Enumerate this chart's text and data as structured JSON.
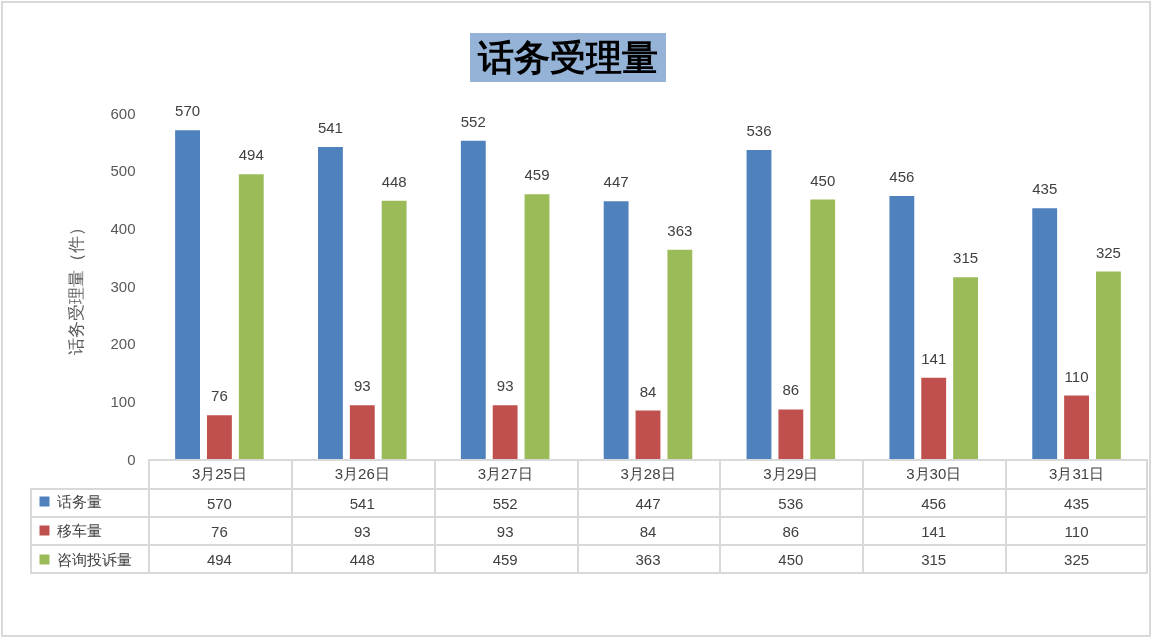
{
  "chart_data": [
    {
      "type": "bar",
      "title": "话务受理量",
      "ylabel": "话务受理量（件）",
      "categories": [
        "3月25日",
        "3月26日",
        "3月27日",
        "3月28日",
        "3月29日",
        "3月30日",
        "3月31日"
      ],
      "series": [
        {
          "name": "话务量",
          "color": "#4f81bd",
          "values": [
            570,
            541,
            552,
            447,
            536,
            456,
            435
          ],
          "value_labels": [
            "570",
            "541",
            "552",
            "447",
            "536",
            "456",
            "435"
          ]
        },
        {
          "name": "移车量",
          "color": "#c0504d",
          "values": [
            76,
            93,
            93,
            84,
            86,
            141,
            110
          ],
          "value_labels": [
            "76",
            "93",
            "93",
            "84",
            "86",
            "141",
            "110"
          ]
        },
        {
          "name": "咨询投诉量",
          "color": "#9bbb59",
          "values": [
            494,
            448,
            459,
            363,
            450,
            315,
            325
          ],
          "value_labels": [
            "494",
            "448",
            "459",
            "363",
            "450",
            "315",
            "325"
          ]
        }
      ],
      "ylim": [
        0,
        600
      ],
      "yticks": [
        0,
        100,
        200,
        300,
        400,
        500,
        600
      ],
      "grid": false,
      "legend": "bottom left"
    },
    {
      "type": "other",
      "annotations": [
        "570",
        "541",
        "552",
        "447",
        "536",
        "456",
        "435",
        "76",
        "93",
        "93",
        "84",
        "86",
        "141",
        "110",
        "494",
        "448",
        "459",
        "363",
        "450",
        "315",
        "325"
      ]
    }
  ]
}
